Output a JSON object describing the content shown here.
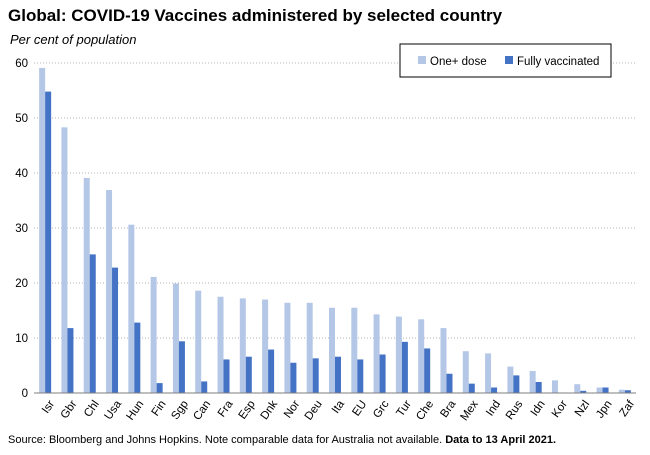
{
  "header": {
    "title": "Global: COVID-19 Vaccines administered by selected country",
    "subtitle": "Per cent of population"
  },
  "footer": {
    "source_text": "Source: Bloomberg and Johns Hopkins.  Note comparable data for Australia not available.",
    "source_bold": "Data to 13 April 2021."
  },
  "chart_data": {
    "type": "bar",
    "title": "Global: COVID-19 Vaccines administered by selected country",
    "subtitle": "Per cent of population",
    "xlabel": "",
    "ylabel": "",
    "ylim": [
      0,
      60
    ],
    "yticks": [
      0,
      10,
      20,
      30,
      40,
      50,
      60
    ],
    "grid": "horizontal dotted",
    "legend_position": "top-right",
    "categories": [
      "Isr",
      "Gbr",
      "Chl",
      "Usa",
      "Hun",
      "Fin",
      "Sgp",
      "Can",
      "Fra",
      "Esp",
      "Dnk",
      "Nor",
      "Deu",
      "Ita",
      "EU",
      "Grc",
      "Tur",
      "Che",
      "Bra",
      "Mex",
      "Ind",
      "Rus",
      "Idn",
      "Kor",
      "Nzl",
      "Jpn",
      "Zaf"
    ],
    "series": [
      {
        "name": "One+ dose",
        "color": "#b4c7e7",
        "values": [
          59.1,
          48.3,
          39.1,
          36.9,
          30.6,
          21.1,
          19.9,
          18.6,
          17.5,
          17.2,
          17.0,
          16.4,
          16.4,
          15.5,
          15.5,
          14.3,
          13.9,
          13.4,
          11.8,
          7.6,
          7.2,
          4.8,
          4.0,
          2.3,
          1.6,
          1.0,
          0.6
        ]
      },
      {
        "name": "Fully vaccinated",
        "color": "#4472c4",
        "values": [
          54.8,
          11.8,
          25.2,
          22.8,
          12.8,
          1.8,
          9.4,
          2.1,
          6.1,
          6.6,
          7.9,
          5.5,
          6.3,
          6.6,
          6.1,
          7.0,
          9.3,
          8.1,
          3.5,
          1.7,
          1.0,
          3.2,
          2.0,
          0.0,
          0.4,
          1.0,
          0.5
        ]
      }
    ]
  }
}
